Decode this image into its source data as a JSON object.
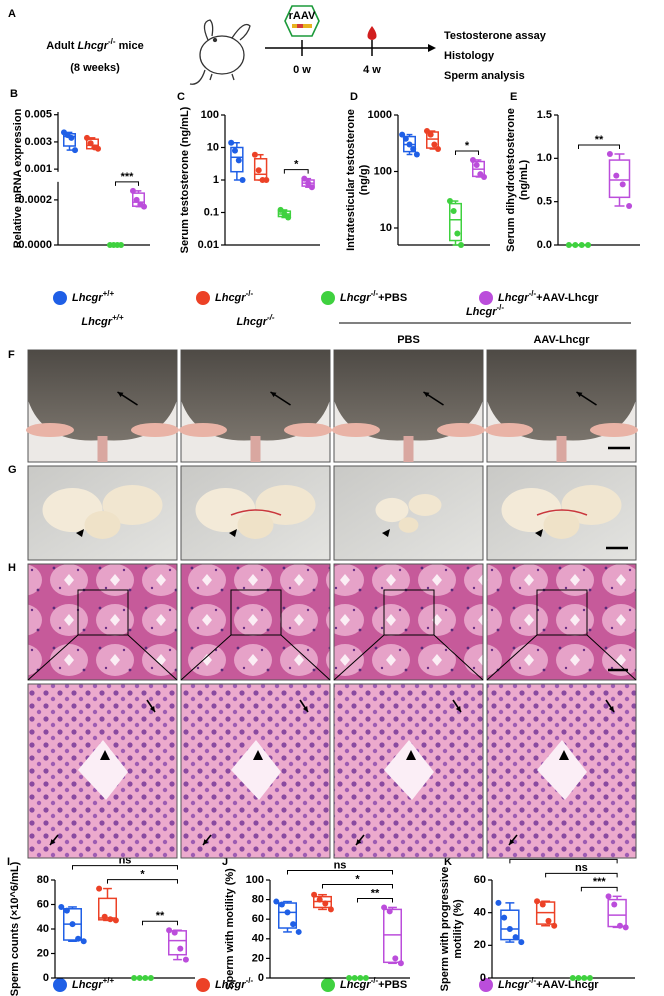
{
  "panel_a": {
    "label": "A",
    "subject": {
      "prefix": "Adult ",
      "gene": "Lhcgr",
      "genotype": "-/-",
      "suffix": " mice"
    },
    "age": "(8 weeks)",
    "vector": "rAAV",
    "timepoints": [
      "0 w",
      "4 w"
    ],
    "readouts": [
      "Testosterone assay",
      "Histology",
      "Sperm analysis"
    ]
  },
  "legend": [
    {
      "gene": "Lhcgr",
      "genotype": "+/+",
      "color": "#1f5fe6"
    },
    {
      "gene": "Lhcgr",
      "genotype": "-/-",
      "color": "#ec4126"
    },
    {
      "gene": "Lhcgr",
      "genotype": "-/-",
      "treatment": "+PBS",
      "color": "#3fd13f"
    },
    {
      "gene": "Lhcgr",
      "genotype": "-/-",
      "treatment": "+AAV-Lhcgr",
      "color": "#bb4ddb"
    }
  ],
  "images": {
    "row_labels": [
      "F",
      "G",
      "H"
    ],
    "column_headers": [
      {
        "gene": "Lhcgr",
        "genotype": "+/+"
      },
      {
        "gene": "Lhcgr",
        "genotype": "-/-"
      }
    ],
    "group_header": {
      "gene": "Lhcgr",
      "genotype": "-/-"
    },
    "subheaders": [
      "PBS",
      "AAV-Lhcgr"
    ]
  },
  "chart_data": [
    {
      "type": "box",
      "label": "B",
      "ylabel": [
        "Relative mRNA expression"
      ],
      "ylim": [
        0,
        0.00028
      ],
      "yticks": [
        {
          "value": 0,
          "label": "0.0000"
        },
        0.0002
      ],
      "ylim_upper": [
        0.0008,
        0.0052
      ],
      "yticks_upper": [
        0.001,
        0.003,
        0.005
      ],
      "series": [
        {
          "color": "#1f5fe6",
          "values": [
            0.0037,
            0.0035,
            0.0033,
            0.0024
          ],
          "box": [
            0.0024,
            0.0027,
            0.0034,
            0.0036,
            0.0037
          ]
        },
        {
          "color": "#ec4126",
          "values": [
            0.0033,
            0.0029,
            0.0026,
            0.0025
          ],
          "box": [
            0.0025,
            0.0025,
            0.00275,
            0.0032,
            0.0033
          ]
        },
        {
          "color": "#3fd13f",
          "values": [
            0,
            0,
            0,
            0
          ],
          "box": [
            0,
            0,
            0,
            0,
            0
          ]
        },
        {
          "color": "#bb4ddb",
          "values": [
            0.00024,
            0.0002,
            0.00018,
            0.00017
          ],
          "box": [
            0.00017,
            0.000172,
            0.00019,
            0.00023,
            0.00024
          ]
        }
      ],
      "comparisons": [
        {
          "label": "***",
          "groups": [
            2,
            3
          ]
        }
      ]
    },
    {
      "type": "box",
      "label": "C",
      "ylabel": [
        "Serum testosterone (ng/mL)"
      ],
      "log": true,
      "ylim": [
        0.01,
        100
      ],
      "yticks": [
        0.01,
        0.1,
        1,
        10,
        100
      ],
      "series": [
        {
          "color": "#1f5fe6",
          "values": [
            14,
            8,
            4,
            1
          ],
          "box": [
            1,
            1.8,
            5,
            10,
            14
          ]
        },
        {
          "color": "#ec4126",
          "values": [
            6,
            2,
            1,
            1
          ],
          "box": [
            1,
            1,
            1.5,
            4.5,
            6
          ]
        },
        {
          "color": "#3fd13f",
          "values": [
            0.12,
            0.09,
            0.07
          ],
          "box": [
            0.07,
            0.075,
            0.09,
            0.11,
            0.12
          ]
        },
        {
          "color": "#bb4ddb",
          "values": [
            1.1,
            0.8,
            0.6
          ],
          "box": [
            0.6,
            0.65,
            0.8,
            1,
            1.1
          ]
        }
      ],
      "comparisons": [
        {
          "label": "*",
          "groups": [
            2,
            3
          ]
        }
      ]
    },
    {
      "type": "box",
      "label": "D",
      "ylabel": [
        "Intratesticular testosterone",
        "(ng/g)"
      ],
      "log": true,
      "ylim": [
        5,
        1000
      ],
      "yticks": [
        10,
        100,
        1000
      ],
      "series": [
        {
          "color": "#1f5fe6",
          "values": [
            450,
            380,
            300,
            250,
            200
          ],
          "box": [
            200,
            225,
            300,
            415,
            450
          ]
        },
        {
          "color": "#ec4126",
          "values": [
            520,
            450,
            300,
            250
          ],
          "box": [
            250,
            260,
            375,
            500,
            520
          ]
        },
        {
          "color": "#3fd13f",
          "values": [
            30,
            20,
            8,
            5
          ],
          "box": [
            5,
            6,
            14,
            27,
            30
          ]
        },
        {
          "color": "#bb4ddb",
          "values": [
            160,
            130,
            90,
            80
          ],
          "box": [
            80,
            82,
            110,
            150,
            160
          ]
        }
      ],
      "comparisons": [
        {
          "label": "*",
          "groups": [
            2,
            3
          ]
        }
      ]
    },
    {
      "type": "box",
      "label": "E",
      "ylabel": [
        "Serum dihydrotestosterone",
        "(ng/mL)"
      ],
      "ylim": [
        0,
        1.5
      ],
      "yticks": [
        {
          "value": 0,
          "label": "0.0"
        },
        0.5,
        {
          "value": 1,
          "label": "1.0"
        },
        1.5
      ],
      "series": [
        {
          "color": "#3fd13f",
          "values": [
            0,
            0,
            0,
            0
          ],
          "box": [
            0,
            0,
            0,
            0,
            0
          ]
        },
        {
          "color": "#bb4ddb",
          "values": [
            1.05,
            0.8,
            0.7,
            0.45
          ],
          "box": [
            0.45,
            0.55,
            0.75,
            0.98,
            1.05
          ]
        }
      ],
      "comparisons": [
        {
          "label": "**",
          "groups": [
            0,
            1
          ]
        }
      ]
    },
    {
      "type": "box",
      "label": "I",
      "ylabel": [
        "Sperm counts (×10^6/mL)"
      ],
      "ylim": [
        0,
        80
      ],
      "yticks": [
        0,
        20,
        40,
        60,
        80
      ],
      "series": [
        {
          "color": "#1f5fe6",
          "values": [
            58,
            55,
            44,
            32,
            30
          ],
          "box": [
            30,
            31,
            44,
            56.5,
            58
          ]
        },
        {
          "color": "#ec4126",
          "values": [
            73,
            50,
            48,
            47
          ],
          "box": [
            47,
            47.5,
            49,
            65,
            73
          ]
        },
        {
          "color": "#3fd13f",
          "values": [
            0,
            0,
            0,
            0
          ],
          "box": [
            0,
            0,
            0,
            0,
            0
          ]
        },
        {
          "color": "#bb4ddb",
          "values": [
            39,
            37,
            24,
            15
          ],
          "box": [
            15,
            19,
            30.5,
            38.5,
            39
          ]
        }
      ],
      "comparisons": [
        {
          "label": "ns",
          "groups": [
            0,
            3
          ]
        },
        {
          "label": "*",
          "groups": [
            1,
            3
          ]
        },
        {
          "label": "**",
          "groups": [
            2,
            3
          ]
        }
      ]
    },
    {
      "type": "box",
      "label": "J",
      "ylabel": [
        "Sperm with motility (%)"
      ],
      "ylim": [
        0,
        100
      ],
      "yticks": [
        0,
        20,
        40,
        60,
        80,
        100
      ],
      "series": [
        {
          "color": "#1f5fe6",
          "values": [
            78,
            75,
            67,
            55,
            47
          ],
          "box": [
            47,
            51,
            67,
            76.5,
            78
          ]
        },
        {
          "color": "#ec4126",
          "values": [
            85,
            80,
            76,
            70
          ],
          "box": [
            70,
            72,
            78,
            83,
            85
          ]
        },
        {
          "color": "#3fd13f",
          "values": [
            0,
            0,
            0,
            0
          ],
          "box": [
            0,
            0,
            0,
            0,
            0
          ]
        },
        {
          "color": "#bb4ddb",
          "values": [
            72,
            68,
            20,
            15
          ],
          "box": [
            15,
            16,
            44,
            70,
            72
          ]
        }
      ],
      "comparisons": [
        {
          "label": "ns",
          "groups": [
            0,
            3
          ]
        },
        {
          "label": "*",
          "groups": [
            1,
            3
          ]
        },
        {
          "label": "**",
          "groups": [
            2,
            3
          ]
        }
      ]
    },
    {
      "type": "box",
      "label": "K",
      "ylabel": [
        "Sperm with progressive",
        "motility (%)"
      ],
      "ylim": [
        0,
        60
      ],
      "yticks": [
        0,
        20,
        40,
        60
      ],
      "series": [
        {
          "color": "#1f5fe6",
          "values": [
            46,
            37,
            30,
            25,
            22
          ],
          "box": [
            22,
            23.5,
            30,
            41.5,
            46
          ]
        },
        {
          "color": "#ec4126",
          "values": [
            47,
            45,
            35,
            32
          ],
          "box": [
            32,
            33,
            40,
            46.5,
            47
          ]
        },
        {
          "color": "#3fd13f",
          "values": [
            0,
            0,
            0,
            0
          ],
          "box": [
            0,
            0,
            0,
            0,
            0
          ]
        },
        {
          "color": "#bb4ddb",
          "values": [
            50,
            45,
            32,
            31
          ],
          "box": [
            31,
            31.5,
            38.5,
            48,
            50
          ]
        }
      ],
      "comparisons": [
        {
          "label": "ns",
          "groups": [
            0,
            3
          ]
        },
        {
          "label": "ns",
          "groups": [
            1,
            3
          ]
        },
        {
          "label": "***",
          "groups": [
            2,
            3
          ]
        }
      ]
    }
  ]
}
